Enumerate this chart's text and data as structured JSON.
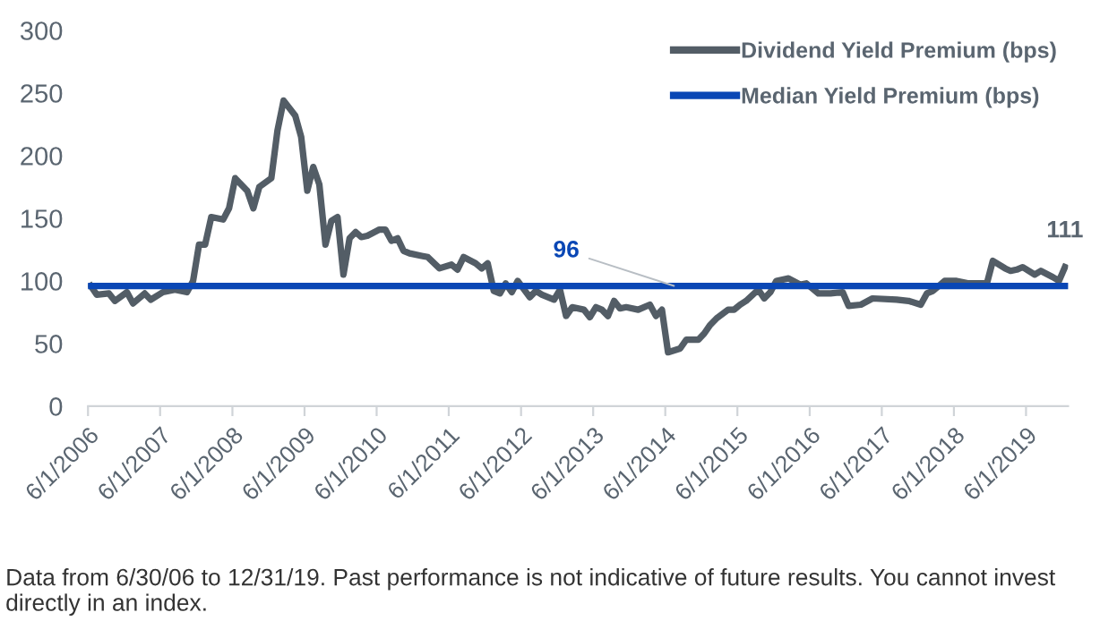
{
  "chart_data": {
    "type": "line",
    "x": [
      "2006-06",
      "2006-07",
      "2006-09",
      "2006-10",
      "2006-12",
      "2007-01",
      "2007-03",
      "2007-04",
      "2007-06",
      "2007-08",
      "2007-10",
      "2007-11",
      "2007-12",
      "2008-01",
      "2008-02",
      "2008-04",
      "2008-05",
      "2008-06",
      "2008-08",
      "2008-09",
      "2008-10",
      "2008-12",
      "2009-01",
      "2009-02",
      "2009-04",
      "2009-05",
      "2009-06",
      "2009-07",
      "2009-08",
      "2009-09",
      "2009-10",
      "2009-11",
      "2009-12",
      "2010-01",
      "2010-02",
      "2010-03",
      "2010-04",
      "2010-06",
      "2010-07",
      "2010-08",
      "2010-09",
      "2010-10",
      "2010-11",
      "2011-01",
      "2011-02",
      "2011-04",
      "2011-06",
      "2011-07",
      "2011-08",
      "2011-10",
      "2011-11",
      "2011-12",
      "2012-01",
      "2012-02",
      "2012-03",
      "2012-04",
      "2012-05",
      "2012-07",
      "2012-08",
      "2012-09",
      "2012-11",
      "2012-12",
      "2013-01",
      "2013-02",
      "2013-04",
      "2013-05",
      "2013-06",
      "2013-07",
      "2013-08",
      "2013-09",
      "2013-10",
      "2013-11",
      "2014-01",
      "2014-03",
      "2014-04",
      "2014-05",
      "2014-06",
      "2014-08",
      "2014-09",
      "2014-11",
      "2014-12",
      "2015-01",
      "2015-02",
      "2015-04",
      "2015-05",
      "2015-06",
      "2015-07",
      "2015-09",
      "2015-10",
      "2015-11",
      "2015-12",
      "2016-02",
      "2016-04",
      "2016-05",
      "2016-07",
      "2016-09",
      "2016-11",
      "2016-12",
      "2017-02",
      "2017-04",
      "2017-08",
      "2017-10",
      "2017-12",
      "2018-01",
      "2018-02",
      "2018-04",
      "2018-06",
      "2018-08",
      "2018-11",
      "2018-12",
      "2019-02",
      "2019-03",
      "2019-04",
      "2019-05",
      "2019-07",
      "2019-08",
      "2019-10",
      "2019-11",
      "2019-12"
    ],
    "series": [
      {
        "name": "Dividend Yield Premium (bps)",
        "color": "#535d66",
        "values": [
          96,
          89,
          90,
          84,
          91,
          82,
          90,
          85,
          91,
          93,
          91,
          100,
          129,
          129,
          151,
          149,
          158,
          182,
          172,
          158,
          175,
          182,
          220,
          244,
          232,
          215,
          172,
          191,
          177,
          129,
          148,
          151,
          105,
          134,
          139,
          135,
          136,
          141,
          141,
          132,
          134,
          124,
          122,
          120,
          119,
          110,
          113,
          109,
          119,
          114,
          110,
          114,
          92,
          90,
          98,
          91,
          100,
          87,
          92,
          89,
          85,
          93,
          72,
          79,
          77,
          71,
          79,
          77,
          72,
          84,
          78,
          79,
          77,
          81,
          72,
          77,
          43,
          46,
          53,
          53,
          58,
          65,
          70,
          77,
          77,
          81,
          84,
          93,
          86,
          91,
          100,
          102,
          97,
          98,
          90,
          90,
          91,
          80,
          81,
          86,
          85,
          84,
          81,
          90,
          92,
          100,
          100,
          98,
          98,
          116,
          110,
          108,
          109,
          111,
          105,
          108,
          103,
          100,
          111
        ]
      }
    ],
    "ref_lines": [
      {
        "axis": "y",
        "value": 96,
        "label": "Median Yield Premium (bps)",
        "color": "#0a47b5"
      }
    ],
    "annotations": [
      {
        "text": "96",
        "x": "2014-07",
        "y": 96
      },
      {
        "text": "111",
        "x": "2019-12",
        "y": 111
      },
      "Data from 6/30/06 to 12/31/19. Past performance is not indicative of future results. You cannot invest directly in an index."
    ],
    "xlim": [
      "2006-06-01",
      "2019-12-31"
    ],
    "xticks": [
      {
        "value": "2006-06-01",
        "label": "6/1/2006"
      },
      {
        "value": "2007-06-01",
        "label": "6/1/2007"
      },
      {
        "value": "2008-06-01",
        "label": "6/1/2008"
      },
      {
        "value": "2009-06-01",
        "label": "6/1/2009"
      },
      {
        "value": "2010-06-01",
        "label": "6/1/2010"
      },
      {
        "value": "2011-06-01",
        "label": "6/1/2011"
      },
      {
        "value": "2012-06-01",
        "label": "6/1/2012"
      },
      {
        "value": "2013-06-01",
        "label": "6/1/2013"
      },
      {
        "value": "2014-06-01",
        "label": "6/1/2014"
      },
      {
        "value": "2015-06-01",
        "label": "6/1/2015"
      },
      {
        "value": "2016-06-01",
        "label": "6/1/2016"
      },
      {
        "value": "2017-06-01",
        "label": "6/1/2017"
      },
      {
        "value": "2018-06-01",
        "label": "6/1/2018"
      },
      {
        "value": "2019-06-01",
        "label": "6/1/2019"
      }
    ],
    "ylim": [
      0,
      300
    ],
    "yticks": [
      0,
      50,
      100,
      150,
      200,
      250,
      300
    ],
    "grid": false,
    "legend": "top right",
    "marker": "none",
    "line_style": "solid"
  }
}
